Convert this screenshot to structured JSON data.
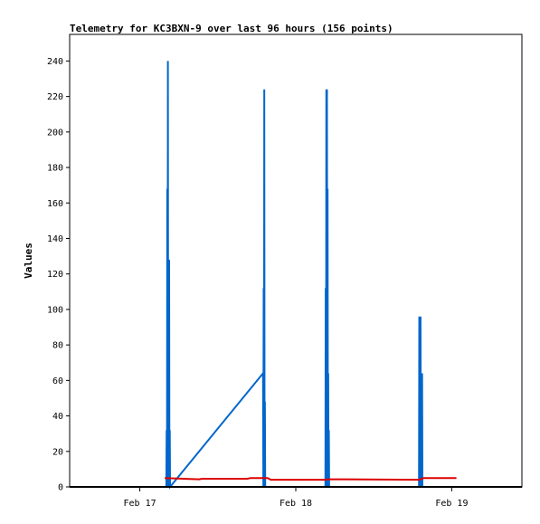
{
  "chart_data": {
    "type": "line",
    "title": "Telemetry for KC3BXN-9 over last 96 hours (156 points)",
    "xlabel": "",
    "ylabel": "Values",
    "ylim": [
      0,
      255
    ],
    "xlim": [
      -0.45,
      2.45
    ],
    "grid": false,
    "yticks": [
      0,
      20,
      40,
      60,
      80,
      100,
      120,
      140,
      160,
      180,
      200,
      220,
      240
    ],
    "xticks": [
      {
        "value": 0,
        "label": "Feb 17"
      },
      {
        "value": 1,
        "label": "Feb 18"
      },
      {
        "value": 2,
        "label": "Feb 19"
      }
    ],
    "series": [
      {
        "color": "#0066cc",
        "points": [
          [
            0.17,
            0
          ],
          [
            0.172,
            32
          ],
          [
            0.174,
            0
          ],
          [
            0.176,
            168
          ],
          [
            0.178,
            0
          ],
          [
            0.18,
            240
          ],
          [
            0.182,
            0
          ],
          [
            0.184,
            96
          ],
          [
            0.186,
            0
          ],
          [
            0.188,
            128
          ],
          [
            0.19,
            0
          ],
          [
            0.192,
            32
          ],
          [
            0.194,
            0
          ],
          [
            0.79,
            64
          ],
          [
            0.792,
            0
          ],
          [
            0.794,
            112
          ],
          [
            0.796,
            0
          ],
          [
            0.798,
            224
          ],
          [
            0.8,
            0
          ],
          [
            0.802,
            48
          ],
          [
            0.804,
            0
          ],
          [
            1.19,
            0
          ],
          [
            1.192,
            112
          ],
          [
            1.194,
            0
          ],
          [
            1.196,
            224
          ],
          [
            1.198,
            0
          ],
          [
            1.2,
            224
          ],
          [
            1.202,
            0
          ],
          [
            1.204,
            168
          ],
          [
            1.206,
            0
          ],
          [
            1.208,
            64
          ],
          [
            1.21,
            0
          ],
          [
            1.212,
            32
          ],
          [
            1.214,
            0
          ],
          [
            1.79,
            0
          ],
          [
            1.792,
            96
          ],
          [
            1.794,
            0
          ],
          [
            1.796,
            80
          ],
          [
            1.798,
            0
          ],
          [
            1.8,
            96
          ],
          [
            1.802,
            0
          ],
          [
            1.804,
            48
          ],
          [
            1.806,
            0
          ],
          [
            1.81,
            64
          ],
          [
            1.812,
            0
          ]
        ]
      },
      {
        "color": "#dd0000",
        "points": [
          [
            0.16,
            5
          ],
          [
            0.38,
            4.3
          ],
          [
            0.4,
            4.6
          ],
          [
            0.69,
            4.6
          ],
          [
            0.71,
            5
          ],
          [
            0.82,
            5
          ],
          [
            0.84,
            4
          ],
          [
            1.19,
            4
          ],
          [
            1.21,
            4.3
          ],
          [
            1.79,
            4
          ],
          [
            1.82,
            5
          ],
          [
            2.03,
            5
          ]
        ]
      }
    ]
  }
}
